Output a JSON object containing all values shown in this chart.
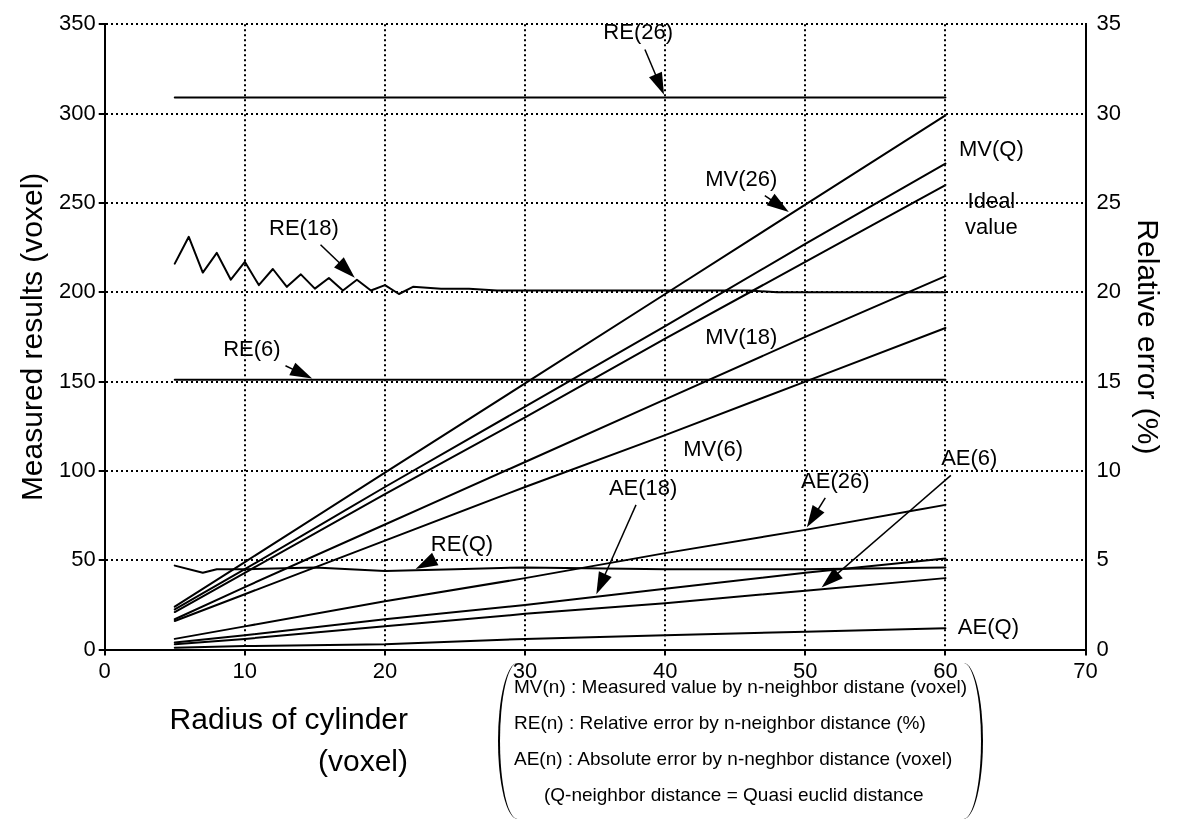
{
  "chart_data": {
    "type": "line",
    "xlabel": "Radius of cylinder (voxel)",
    "ylabel": "Measured results (voxel)",
    "y2label": "Relative error (%)",
    "x": [
      5,
      10,
      20,
      30,
      40,
      50,
      60
    ],
    "xlim": [
      0,
      70
    ],
    "xticks": [
      0,
      10,
      20,
      30,
      40,
      50,
      60,
      70
    ],
    "ylim": [
      0,
      350
    ],
    "yticks": [
      0,
      50,
      100,
      150,
      200,
      250,
      300,
      350
    ],
    "y2lim": [
      0,
      35
    ],
    "y2ticks": [
      0,
      5,
      10,
      15,
      20,
      25,
      30,
      35
    ],
    "grid": true,
    "legend": false,
    "marker": "none",
    "line_style": "solid",
    "series": [
      {
        "name": "MV(26)",
        "color": "#000000",
        "values": [
          24,
          49,
          99,
          149,
          199,
          249,
          299
        ]
      },
      {
        "name": "MV(Q)",
        "color": "#000000",
        "values": [
          22.5,
          45,
          91,
          136,
          181,
          227,
          272
        ]
      },
      {
        "name": "Ideal value",
        "color": "#000000",
        "values": [
          21,
          43,
          87,
          130,
          174,
          217,
          260
        ]
      },
      {
        "name": "MV(18)",
        "color": "#000000",
        "values": [
          17,
          35,
          70,
          105,
          140,
          175,
          209
        ]
      },
      {
        "name": "MV(6)",
        "color": "#000000",
        "values": [
          16,
          31,
          61,
          91,
          120,
          150,
          180
        ]
      },
      {
        "name": "AE(26)",
        "color": "#000000",
        "values": [
          6,
          13,
          27,
          40,
          54,
          67,
          81
        ]
      },
      {
        "name": "AE(18)",
        "color": "#000000",
        "values": [
          4,
          8,
          17,
          25,
          34,
          43,
          51
        ]
      },
      {
        "name": "AE(6)",
        "color": "#000000",
        "values": [
          3,
          6,
          13,
          20,
          26,
          33,
          40
        ]
      },
      {
        "name": "AE(Q)",
        "color": "#000000",
        "values": [
          1,
          2,
          3,
          6,
          8,
          10,
          12
        ]
      },
      {
        "name": "RE(26)",
        "color": "#000000",
        "axis": "y2",
        "x": [
          5,
          60
        ],
        "values": [
          30.9,
          30.9
        ]
      },
      {
        "name": "RE(18)",
        "color": "#000000",
        "axis": "y2",
        "x": [
          5,
          6,
          7,
          8,
          9,
          10,
          11,
          12,
          13,
          14,
          15,
          16,
          17,
          18,
          19,
          20,
          21,
          22,
          24,
          26,
          28,
          30,
          32,
          34,
          36,
          38,
          40,
          42,
          44,
          46,
          48,
          50,
          52,
          54,
          56,
          58,
          60
        ],
        "values": [
          21.6,
          23.1,
          21.1,
          22.2,
          20.7,
          21.7,
          20.4,
          21.3,
          20.3,
          21.0,
          20.2,
          20.8,
          20.1,
          20.7,
          20.1,
          20.4,
          19.9,
          20.3,
          20.2,
          20.2,
          20.1,
          20.1,
          20.1,
          20.1,
          20.1,
          20.1,
          20.1,
          20.1,
          20.1,
          20.1,
          20.0,
          20.0,
          20.0,
          20.0,
          20.0,
          20.0,
          20.0
        ]
      },
      {
        "name": "RE(6)",
        "color": "#000000",
        "axis": "y2",
        "x": [
          5,
          60
        ],
        "values": [
          15.1,
          15.1
        ]
      },
      {
        "name": "RE(Q)",
        "color": "#000000",
        "axis": "y2",
        "x": [
          5,
          7,
          8,
          10,
          15,
          20,
          25,
          30,
          40,
          50,
          60
        ],
        "values": [
          4.7,
          4.3,
          4.5,
          4.5,
          4.6,
          4.4,
          4.5,
          4.6,
          4.5,
          4.5,
          4.6
        ]
      }
    ],
    "annotations": [
      "MV(n) : Measured value by n-neighbor distane (voxel)",
      "RE(n) : Relative error by n-neighbor distance (%)",
      "AE(n) : Absolute error by n-neghbor distance (voxel)",
      "(Q-neighbor distance = Quasi euclid distance"
    ]
  }
}
